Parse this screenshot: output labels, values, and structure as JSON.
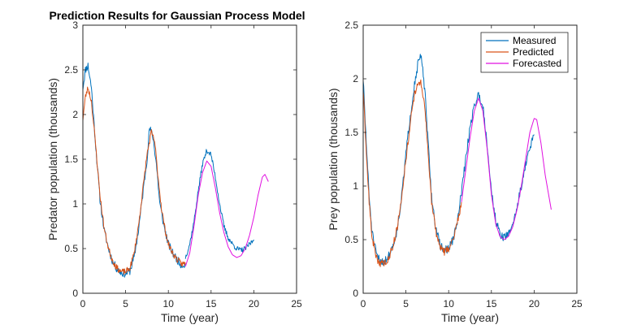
{
  "figure": {
    "title": "Prediction Results for Gaussian Process Model"
  },
  "colors": {
    "measured": "#0072BD",
    "predicted": "#D95319",
    "forecasted": "#E010E0",
    "axis": "#262626"
  },
  "chart_data": [
    {
      "type": "line",
      "title": "Prediction Results for Gaussian Process Model",
      "xlabel": "Time (year)",
      "ylabel": "Predator population (thousands)",
      "xlim": [
        0,
        25
      ],
      "ylim": [
        0,
        3
      ],
      "xticks": [
        0,
        5,
        10,
        15,
        20,
        25
      ],
      "xtick_labels": [
        "0",
        "5",
        "10",
        "15",
        "20",
        "25"
      ],
      "yticks": [
        0,
        0.5,
        1,
        1.5,
        2,
        2.5,
        3
      ],
      "ytick_labels": [
        "0",
        "0.5",
        "1",
        "1.5",
        "2",
        "2.5",
        "3"
      ],
      "grid": false,
      "series": [
        {
          "name": "Measured",
          "color": "#0072BD",
          "noise": 0.045,
          "seed": 11,
          "points": [
            [
              0,
              2.3
            ],
            [
              0.3,
              2.5
            ],
            [
              0.6,
              2.55
            ],
            [
              1,
              2.3
            ],
            [
              1.5,
              1.65
            ],
            [
              2,
              1.05
            ],
            [
              2.5,
              0.7
            ],
            [
              3,
              0.5
            ],
            [
              3.5,
              0.35
            ],
            [
              4,
              0.27
            ],
            [
              4.5,
              0.23
            ],
            [
              5,
              0.22
            ],
            [
              5.5,
              0.25
            ],
            [
              6,
              0.4
            ],
            [
              6.5,
              0.7
            ],
            [
              7,
              1.1
            ],
            [
              7.5,
              1.5
            ],
            [
              7.8,
              1.85
            ],
            [
              8.2,
              1.75
            ],
            [
              8.6,
              1.45
            ],
            [
              9,
              1.0
            ],
            [
              9.5,
              0.75
            ],
            [
              10,
              0.55
            ],
            [
              10.5,
              0.45
            ],
            [
              11,
              0.38
            ],
            [
              11.5,
              0.32
            ],
            [
              12,
              0.32
            ]
          ]
        },
        {
          "name": "Predicted",
          "color": "#D95319",
          "noise": 0.035,
          "seed": 23,
          "points": [
            [
              0,
              1.95
            ],
            [
              0.3,
              2.2
            ],
            [
              0.6,
              2.3
            ],
            [
              1,
              2.15
            ],
            [
              1.5,
              1.65
            ],
            [
              2,
              1.1
            ],
            [
              2.5,
              0.72
            ],
            [
              3,
              0.5
            ],
            [
              3.5,
              0.36
            ],
            [
              4,
              0.28
            ],
            [
              4.5,
              0.24
            ],
            [
              5,
              0.24
            ],
            [
              5.5,
              0.28
            ],
            [
              6,
              0.45
            ],
            [
              6.5,
              0.75
            ],
            [
              7,
              1.15
            ],
            [
              7.5,
              1.55
            ],
            [
              8,
              1.8
            ],
            [
              8.4,
              1.7
            ],
            [
              8.8,
              1.3
            ],
            [
              9.2,
              0.95
            ],
            [
              9.6,
              0.72
            ],
            [
              10,
              0.55
            ],
            [
              10.5,
              0.45
            ],
            [
              11,
              0.38
            ],
            [
              11.5,
              0.33
            ],
            [
              12,
              0.33
            ]
          ]
        },
        {
          "name": "Measured",
          "color": "#0072BD",
          "noise": 0.03,
          "seed": 37,
          "points": [
            [
              12,
              0.4
            ],
            [
              12.5,
              0.55
            ],
            [
              13,
              0.8
            ],
            [
              13.5,
              1.15
            ],
            [
              14,
              1.45
            ],
            [
              14.5,
              1.6
            ],
            [
              15,
              1.55
            ],
            [
              15.5,
              1.3
            ],
            [
              16,
              1.0
            ],
            [
              16.5,
              0.75
            ],
            [
              17,
              0.62
            ],
            [
              17.5,
              0.55
            ],
            [
              18,
              0.5
            ],
            [
              18.5,
              0.48
            ],
            [
              19,
              0.5
            ],
            [
              19.5,
              0.55
            ],
            [
              20,
              0.6
            ]
          ]
        },
        {
          "name": "Forecasted",
          "color": "#E010E0",
          "noise": 0,
          "seed": 0,
          "points": [
            [
              12,
              0.3
            ],
            [
              12.5,
              0.45
            ],
            [
              13,
              0.75
            ],
            [
              13.5,
              1.1
            ],
            [
              14,
              1.35
            ],
            [
              14.5,
              1.48
            ],
            [
              15,
              1.42
            ],
            [
              15.5,
              1.18
            ],
            [
              16,
              0.9
            ],
            [
              16.5,
              0.68
            ],
            [
              17,
              0.52
            ],
            [
              17.5,
              0.43
            ],
            [
              18,
              0.4
            ],
            [
              18.5,
              0.42
            ],
            [
              19,
              0.5
            ],
            [
              19.5,
              0.65
            ],
            [
              20,
              0.85
            ],
            [
              20.5,
              1.1
            ],
            [
              21,
              1.3
            ],
            [
              21.3,
              1.33
            ],
            [
              21.7,
              1.25
            ]
          ]
        }
      ]
    },
    {
      "type": "line",
      "title": "",
      "xlabel": "Time (year)",
      "ylabel": "Prey population (thousands)",
      "xlim": [
        0,
        25
      ],
      "ylim": [
        0,
        2.5
      ],
      "xticks": [
        0,
        5,
        10,
        15,
        20,
        25
      ],
      "xtick_labels": [
        "0",
        "5",
        "10",
        "15",
        "20",
        "25"
      ],
      "yticks": [
        0,
        0.5,
        1,
        1.5,
        2,
        2.5
      ],
      "ytick_labels": [
        "0",
        "0.5",
        "1",
        "1.5",
        "2",
        "2.5"
      ],
      "grid": false,
      "legend": {
        "placement": "top-right",
        "entries": [
          {
            "name": "Measured",
            "color": "#0072BD"
          },
          {
            "name": "Predicted",
            "color": "#D95319"
          },
          {
            "name": "Forecasted",
            "color": "#E010E0"
          }
        ]
      },
      "series": [
        {
          "name": "Measured",
          "color": "#0072BD",
          "noise": 0.04,
          "seed": 51,
          "points": [
            [
              0,
              2.0
            ],
            [
              0.3,
              1.5
            ],
            [
              0.7,
              0.9
            ],
            [
              1,
              0.6
            ],
            [
              1.3,
              0.45
            ],
            [
              1.6,
              0.35
            ],
            [
              2,
              0.3
            ],
            [
              2.5,
              0.3
            ],
            [
              3,
              0.35
            ],
            [
              3.5,
              0.45
            ],
            [
              4,
              0.6
            ],
            [
              4.5,
              0.9
            ],
            [
              5,
              1.3
            ],
            [
              5.5,
              1.65
            ],
            [
              6,
              1.95
            ],
            [
              6.5,
              2.18
            ],
            [
              6.8,
              2.2
            ],
            [
              7.2,
              1.9
            ],
            [
              7.6,
              1.4
            ],
            [
              8,
              0.9
            ],
            [
              8.5,
              0.6
            ],
            [
              9,
              0.45
            ],
            [
              9.5,
              0.4
            ],
            [
              10,
              0.42
            ],
            [
              10.5,
              0.5
            ],
            [
              11,
              0.65
            ],
            [
              11.5,
              0.95
            ],
            [
              12,
              1.25
            ],
            [
              12.5,
              1.55
            ],
            [
              13,
              1.75
            ],
            [
              13.5,
              1.85
            ],
            [
              14,
              1.75
            ],
            [
              14.5,
              1.4
            ],
            [
              15,
              0.95
            ],
            [
              15.5,
              0.68
            ],
            [
              16,
              0.55
            ],
            [
              16.5,
              0.52
            ],
            [
              17,
              0.55
            ],
            [
              17.5,
              0.65
            ],
            [
              18,
              0.8
            ],
            [
              18.5,
              1.0
            ],
            [
              19,
              1.2
            ],
            [
              19.5,
              1.35
            ],
            [
              20,
              1.48
            ]
          ]
        },
        {
          "name": "Predicted",
          "color": "#D95319",
          "noise": 0.035,
          "seed": 63,
          "points": [
            [
              0,
              1.9
            ],
            [
              0.3,
              1.4
            ],
            [
              0.7,
              0.85
            ],
            [
              1,
              0.55
            ],
            [
              1.3,
              0.42
            ],
            [
              1.6,
              0.32
            ],
            [
              2,
              0.28
            ],
            [
              2.5,
              0.28
            ],
            [
              3,
              0.33
            ],
            [
              3.5,
              0.45
            ],
            [
              4,
              0.62
            ],
            [
              4.5,
              0.9
            ],
            [
              5,
              1.25
            ],
            [
              5.5,
              1.58
            ],
            [
              6,
              1.85
            ],
            [
              6.5,
              1.98
            ],
            [
              6.8,
              1.95
            ],
            [
              7.2,
              1.75
            ],
            [
              7.6,
              1.3
            ],
            [
              8,
              0.85
            ],
            [
              8.5,
              0.58
            ],
            [
              9,
              0.43
            ],
            [
              9.5,
              0.38
            ],
            [
              10,
              0.42
            ],
            [
              10.5,
              0.5
            ],
            [
              11,
              0.65
            ],
            [
              11.5,
              0.85
            ]
          ]
        },
        {
          "name": "Forecasted",
          "color": "#E010E0",
          "noise": 0,
          "seed": 0,
          "points": [
            [
              11.5,
              0.85
            ],
            [
              12,
              1.15
            ],
            [
              12.5,
              1.45
            ],
            [
              13,
              1.7
            ],
            [
              13.5,
              1.82
            ],
            [
              14,
              1.7
            ],
            [
              14.5,
              1.35
            ],
            [
              15,
              0.92
            ],
            [
              15.5,
              0.65
            ],
            [
              16,
              0.53
            ],
            [
              16.5,
              0.5
            ],
            [
              17,
              0.53
            ],
            [
              17.5,
              0.62
            ],
            [
              18,
              0.78
            ],
            [
              18.5,
              1.0
            ],
            [
              19,
              1.25
            ],
            [
              19.5,
              1.5
            ],
            [
              20,
              1.63
            ],
            [
              20.3,
              1.62
            ],
            [
              20.8,
              1.4
            ],
            [
              21.3,
              1.1
            ],
            [
              22,
              0.78
            ]
          ]
        }
      ]
    }
  ]
}
